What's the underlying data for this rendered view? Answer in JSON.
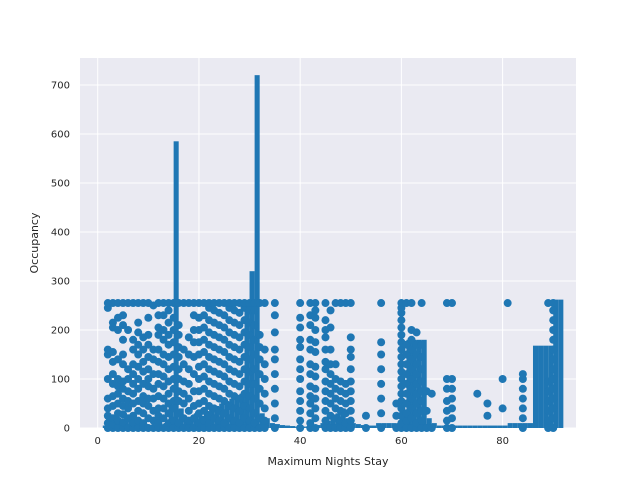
{
  "chart_data": {
    "type": "scatter+histogram",
    "title": "",
    "xlabel": "Maximum Nights Stay",
    "ylabel": "Occupancy",
    "xlim": [
      -3.5,
      94.5
    ],
    "ylim": [
      0,
      755
    ],
    "xticks": [
      0,
      20,
      40,
      60,
      80
    ],
    "yticks": [
      0,
      100,
      200,
      300,
      400,
      500,
      600,
      700
    ],
    "grid": true,
    "style": "seaborn-darkgrid",
    "colors": {
      "series": "#1f77b4",
      "background": "#eaeaf2",
      "grid": "#ffffff"
    },
    "histogram": {
      "name": "",
      "edges_start": 1,
      "bin_width": 1,
      "values": [
        5,
        8,
        12,
        10,
        15,
        18,
        12,
        10,
        8,
        6,
        5,
        6,
        10,
        45,
        585,
        40,
        20,
        15,
        30,
        25,
        35,
        40,
        45,
        50,
        55,
        60,
        60,
        70,
        250,
        320,
        720,
        30,
        20,
        10,
        8,
        6,
        5,
        4,
        3,
        3,
        3,
        4,
        6,
        10,
        15,
        25,
        30,
        40,
        20,
        10,
        8,
        6,
        5,
        5,
        10,
        10,
        10,
        10,
        10,
        10,
        180,
        180,
        180,
        180,
        20,
        10,
        5,
        5,
        5,
        5,
        5,
        5,
        5,
        5,
        5,
        5,
        5,
        5,
        5,
        5,
        10,
        10,
        10,
        10,
        10,
        168,
        168,
        168,
        168,
        262,
        262
      ]
    },
    "scatter": {
      "name": "",
      "columns": [
        {
          "x": 2,
          "y": [
            0,
            10,
            25,
            40,
            60,
            100,
            150,
            160,
            245,
            255
          ]
        },
        {
          "x": 3,
          "y": [
            0,
            8,
            20,
            45,
            65,
            90,
            110,
            135,
            155,
            205,
            215,
            255
          ]
        },
        {
          "x": 4,
          "y": [
            0,
            15,
            30,
            50,
            70,
            85,
            100,
            140,
            200,
            225,
            255
          ]
        },
        {
          "x": 5,
          "y": [
            0,
            12,
            28,
            45,
            60,
            80,
            95,
            130,
            150,
            180,
            210,
            230,
            255
          ]
        },
        {
          "x": 6,
          "y": [
            0,
            20,
            40,
            55,
            75,
            100,
            120,
            200,
            255
          ]
        },
        {
          "x": 7,
          "y": [
            0,
            10,
            25,
            50,
            70,
            90,
            110,
            130,
            160,
            180,
            255
          ]
        },
        {
          "x": 8,
          "y": [
            0,
            15,
            35,
            55,
            80,
            100,
            125,
            150,
            170,
            195,
            215,
            255
          ]
        },
        {
          "x": 9,
          "y": [
            0,
            10,
            30,
            50,
            65,
            90,
            115,
            135,
            160,
            185,
            255
          ]
        },
        {
          "x": 10,
          "y": [
            0,
            20,
            45,
            60,
            85,
            100,
            120,
            145,
            170,
            190,
            225,
            255
          ]
        },
        {
          "x": 11,
          "y": [
            0,
            15,
            35,
            60,
            80,
            110,
            140,
            160,
            250
          ]
        },
        {
          "x": 12,
          "y": [
            0,
            10,
            25,
            40,
            65,
            90,
            110,
            135,
            160,
            190,
            205,
            230,
            255
          ]
        },
        {
          "x": 13,
          "y": [
            0,
            20,
            40,
            60,
            85,
            105,
            130,
            150,
            180,
            200,
            230,
            255
          ]
        },
        {
          "x": 14,
          "y": [
            0,
            10,
            30,
            50,
            70,
            95,
            120,
            145,
            170,
            190,
            215,
            240,
            255
          ]
        },
        {
          "x": 15,
          "y": [
            0,
            15,
            40,
            55,
            80,
            100,
            125,
            150,
            175,
            200,
            225,
            255
          ]
        },
        {
          "x": 16,
          "y": [
            0,
            10,
            30,
            55,
            75,
            100,
            120,
            145,
            165,
            190,
            210,
            255
          ]
        },
        {
          "x": 17,
          "y": [
            0,
            20,
            50,
            70,
            95,
            130,
            160,
            255
          ]
        },
        {
          "x": 18,
          "y": [
            0,
            15,
            35,
            60,
            90,
            120,
            150,
            185,
            255
          ]
        },
        {
          "x": 19,
          "y": [
            0,
            20,
            45,
            75,
            110,
            145,
            175,
            200,
            230,
            255
          ]
        },
        {
          "x": 20,
          "y": [
            0,
            10,
            30,
            50,
            75,
            100,
            125,
            150,
            175,
            200,
            225,
            255
          ]
        },
        {
          "x": 21,
          "y": [
            0,
            15,
            35,
            55,
            80,
            105,
            130,
            155,
            180,
            205,
            230,
            255
          ]
        },
        {
          "x": 22,
          "y": [
            0,
            10,
            25,
            45,
            70,
            95,
            120,
            145,
            170,
            195,
            220,
            245,
            255
          ]
        },
        {
          "x": 23,
          "y": [
            0,
            20,
            40,
            65,
            90,
            115,
            140,
            165,
            190,
            215,
            240,
            255
          ]
        },
        {
          "x": 24,
          "y": [
            0,
            15,
            35,
            60,
            85,
            110,
            135,
            160,
            185,
            210,
            235,
            255
          ]
        },
        {
          "x": 25,
          "y": [
            0,
            10,
            30,
            55,
            80,
            105,
            130,
            155,
            180,
            205,
            230,
            255
          ]
        },
        {
          "x": 26,
          "y": [
            0,
            20,
            45,
            70,
            95,
            120,
            145,
            170,
            195,
            220,
            245,
            255
          ]
        },
        {
          "x": 27,
          "y": [
            0,
            15,
            40,
            65,
            90,
            115,
            140,
            165,
            190,
            215,
            240,
            255
          ]
        },
        {
          "x": 28,
          "y": [
            0,
            10,
            35,
            60,
            85,
            110,
            135,
            160,
            185,
            210,
            235,
            255
          ]
        },
        {
          "x": 29,
          "y": [
            0,
            20,
            45,
            70,
            95,
            120,
            145,
            170,
            195,
            220,
            245,
            255
          ]
        },
        {
          "x": 30,
          "y": [
            0,
            15,
            40,
            65,
            90,
            115,
            140,
            165,
            190,
            215,
            240,
            255
          ]
        },
        {
          "x": 31,
          "y": [
            0,
            10,
            30,
            60,
            90,
            120,
            150,
            180,
            210,
            240,
            255
          ]
        },
        {
          "x": 32,
          "y": [
            0,
            20,
            50,
            80,
            110,
            140,
            165,
            190,
            255
          ]
        },
        {
          "x": 33,
          "y": [
            0,
            15,
            40,
            70,
            100,
            130,
            160,
            255
          ]
        },
        {
          "x": 35,
          "y": [
            0,
            20,
            50,
            80,
            110,
            140,
            160,
            195,
            230,
            255
          ]
        },
        {
          "x": 40,
          "y": [
            0,
            15,
            35,
            55,
            75,
            100,
            120,
            140,
            165,
            180,
            205,
            225,
            255
          ]
        },
        {
          "x": 42,
          "y": [
            0,
            10,
            30,
            50,
            65,
            85,
            110,
            130,
            160,
            180,
            210,
            230,
            255
          ]
        },
        {
          "x": 43,
          "y": [
            0,
            20,
            40,
            60,
            80,
            105,
            125,
            155,
            175,
            200,
            225,
            240,
            255
          ]
        },
        {
          "x": 45,
          "y": [
            0,
            15,
            35,
            55,
            75,
            95,
            120,
            135,
            160,
            185,
            200,
            220,
            255
          ]
        },
        {
          "x": 46,
          "y": [
            0,
            25,
            50,
            70,
            90,
            110,
            130,
            160,
            205,
            240
          ]
        },
        {
          "x": 47,
          "y": [
            0,
            20,
            40,
            60,
            80,
            100,
            130,
            255
          ]
        },
        {
          "x": 48,
          "y": [
            0,
            15,
            35,
            55,
            75,
            95,
            255
          ]
        },
        {
          "x": 49,
          "y": [
            0,
            10,
            30,
            50,
            70,
            90,
            255
          ]
        },
        {
          "x": 50,
          "y": [
            0,
            15,
            35,
            55,
            75,
            95,
            120,
            145,
            160,
            185,
            255
          ]
        },
        {
          "x": 53,
          "y": [
            0,
            25
          ]
        },
        {
          "x": 56,
          "y": [
            0,
            30,
            60,
            90,
            120,
            150,
            175,
            255
          ]
        },
        {
          "x": 59,
          "y": [
            0,
            25,
            50
          ]
        },
        {
          "x": 60,
          "y": [
            0,
            10,
            25,
            40,
            55,
            70,
            85,
            100,
            115,
            130,
            145,
            160,
            175,
            190,
            205,
            220,
            235,
            245,
            255
          ]
        },
        {
          "x": 61,
          "y": [
            0,
            15,
            30,
            50,
            70,
            90,
            110,
            130,
            150,
            170,
            255
          ]
        },
        {
          "x": 62,
          "y": [
            0,
            20,
            40,
            60,
            80,
            100,
            120,
            140,
            160,
            180,
            200,
            255
          ]
        },
        {
          "x": 63,
          "y": [
            0,
            10,
            30,
            50,
            70,
            90,
            110,
            130,
            150,
            170,
            195
          ]
        },
        {
          "x": 64,
          "y": [
            0,
            15,
            35,
            55,
            75,
            95,
            120,
            145,
            170,
            255
          ]
        },
        {
          "x": 65,
          "y": [
            0,
            35,
            75
          ]
        },
        {
          "x": 66,
          "y": [
            0,
            70
          ]
        },
        {
          "x": 69,
          "y": [
            0,
            15,
            35,
            55,
            80,
            100,
            255
          ]
        },
        {
          "x": 70,
          "y": [
            0,
            20,
            40,
            60,
            80,
            100,
            255
          ]
        },
        {
          "x": 75,
          "y": [
            70
          ]
        },
        {
          "x": 77,
          "y": [
            25,
            50
          ]
        },
        {
          "x": 80,
          "y": [
            40,
            100
          ]
        },
        {
          "x": 81,
          "y": [
            255
          ]
        },
        {
          "x": 84,
          "y": [
            0,
            20,
            40,
            60,
            80,
            100,
            110
          ]
        },
        {
          "x": 89,
          "y": [
            0,
            15,
            35,
            55,
            75,
            95,
            255
          ]
        },
        {
          "x": 90,
          "y": [
            0,
            20,
            40,
            60,
            80,
            100,
            120,
            140,
            160,
            180,
            200,
            220,
            240,
            255
          ]
        }
      ]
    }
  }
}
